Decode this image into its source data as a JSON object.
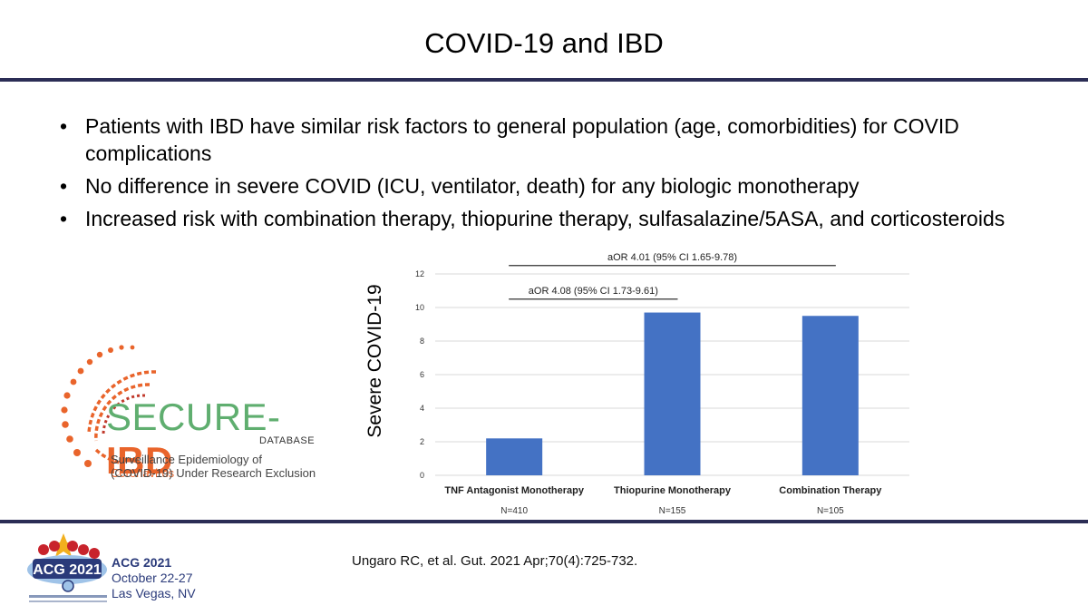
{
  "slide": {
    "title": "COVID-19 and IBD",
    "bullets": [
      "Patients with IBD have similar risk factors to general population (age, comorbidities) for COVID complications",
      "No difference  in severe COVID (ICU, ventilator, death) for any biologic monotherapy",
      "Increased risk with combination therapy, thiopurine therapy, sulfasalazine/5ASA, and corticosteroids"
    ],
    "citation": "Ungaro RC, et al. Gut. 2021 Apr;70(4):725-732."
  },
  "logo": {
    "word_part1": "SECURE-",
    "word_part2": "IBD",
    "database": "DATABASE",
    "subtitle_line1_prefix": "Surveillance Epidemiology of ",
    "subtitle_line1_highlight": "Coronavirus",
    "subtitle_line2": "(COVID-19) Under Research Exclusion"
  },
  "footer": {
    "acg_line1": "ACG 2021",
    "acg_line2": "October 22-27",
    "acg_line3": "Las Vegas, NV",
    "badge_text": "ACG 2021"
  },
  "colors": {
    "bar": "#4472c4",
    "rule": "#2b2d55",
    "logo_green": "#5fae6f",
    "logo_orange": "#e9642b",
    "acg_blue": "#2a3a7a"
  },
  "chart_data": {
    "type": "bar",
    "ylabel": "Severe COVID-19",
    "xlabel": "",
    "title": "",
    "ylim": [
      0,
      12
    ],
    "yticks": [
      0,
      2,
      4,
      6,
      8,
      10,
      12
    ],
    "grid": true,
    "categories": [
      "TNF Antagonist Monotherapy",
      "Thiopurine Monotherapy",
      "Combination Therapy"
    ],
    "n_labels": [
      "N=410",
      "N=155",
      "N=105"
    ],
    "values": [
      2.2,
      9.7,
      9.5
    ],
    "annotations": [
      {
        "text": "aOR 4.01 (95% CI 1.65-9.78)",
        "from": 0,
        "to": 2,
        "level": 12.5
      },
      {
        "text": "aOR 4.08 (95% CI 1.73-9.61)",
        "from": 0,
        "to": 1,
        "level": 10.5
      }
    ]
  }
}
